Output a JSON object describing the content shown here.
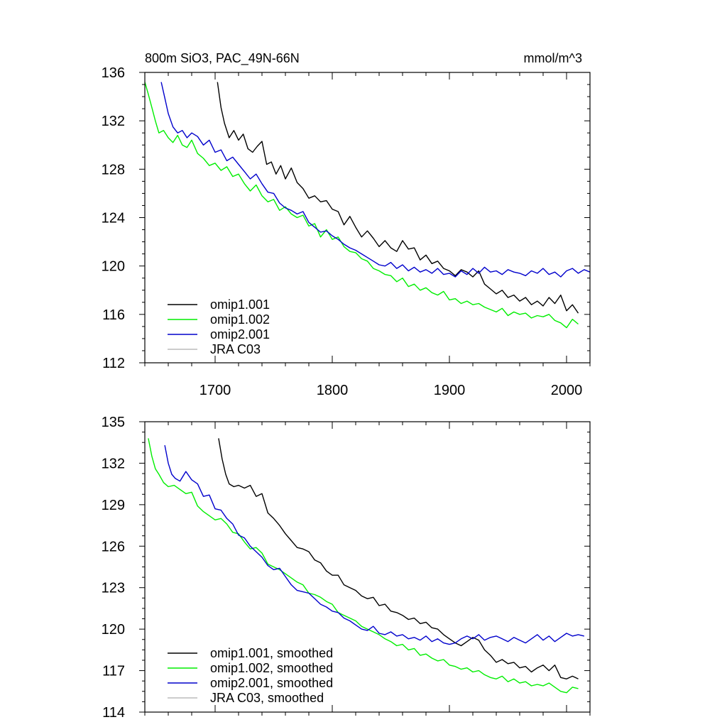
{
  "figure": {
    "background": "#ffffff"
  },
  "chart_data": [
    {
      "type": "line",
      "title": "800m SiO3, PAC_49N-66N",
      "units": "mmol/m^3",
      "xlim": [
        1640,
        2020
      ],
      "ylim": [
        112,
        136
      ],
      "xticks": [
        1700,
        1800,
        1900,
        2000
      ],
      "yticks": [
        112,
        116,
        120,
        124,
        128,
        132,
        136
      ],
      "show_x_tick_labels": true,
      "legend": {
        "placement": "bottom-left"
      },
      "series": [
        {
          "name": "omip1.001",
          "color": "#000000",
          "x": [
            1702,
            1705,
            1708,
            1712,
            1716,
            1720,
            1724,
            1728,
            1732,
            1736,
            1740,
            1744,
            1748,
            1752,
            1756,
            1760,
            1765,
            1770,
            1775,
            1780,
            1785,
            1790,
            1795,
            1800,
            1805,
            1810,
            1815,
            1820,
            1825,
            1830,
            1835,
            1840,
            1845,
            1850,
            1855,
            1860,
            1865,
            1870,
            1875,
            1880,
            1885,
            1890,
            1895,
            1900,
            1905,
            1910,
            1915,
            1920,
            1925,
            1930,
            1935,
            1940,
            1945,
            1950,
            1955,
            1960,
            1965,
            1970,
            1975,
            1980,
            1985,
            1990,
            1995,
            2000,
            2005,
            2010
          ],
          "values": [
            135.2,
            133.1,
            131.8,
            130.6,
            131.2,
            130.4,
            130.9,
            129.7,
            129.4,
            129.9,
            130.3,
            128.4,
            128.6,
            127.6,
            128.3,
            127.2,
            128.1,
            126.9,
            126.4,
            125.6,
            125.8,
            125.3,
            125.4,
            124.7,
            124.5,
            123.4,
            124.1,
            123.2,
            122.4,
            122.9,
            122.3,
            121.6,
            122.1,
            121.5,
            121.2,
            122.1,
            121.4,
            121.5,
            120.5,
            120.9,
            120.2,
            120.4,
            119.8,
            119.6,
            119.2,
            119.7,
            119.5,
            119.1,
            119.6,
            118.5,
            118.1,
            117.7,
            118.0,
            117.4,
            117.6,
            117.1,
            117.4,
            116.8,
            117.1,
            116.7,
            117.4,
            116.9,
            117.6,
            116.3,
            116.8,
            116.1
          ]
        },
        {
          "name": "omip1.002",
          "color": "#00ee00",
          "x": [
            1640,
            1643,
            1646,
            1649,
            1652,
            1656,
            1660,
            1664,
            1668,
            1672,
            1676,
            1680,
            1685,
            1690,
            1695,
            1700,
            1705,
            1710,
            1715,
            1720,
            1725,
            1730,
            1735,
            1740,
            1745,
            1750,
            1755,
            1760,
            1765,
            1770,
            1775,
            1780,
            1785,
            1790,
            1795,
            1800,
            1805,
            1810,
            1815,
            1820,
            1825,
            1830,
            1835,
            1840,
            1845,
            1850,
            1855,
            1860,
            1865,
            1870,
            1875,
            1880,
            1885,
            1890,
            1895,
            1900,
            1905,
            1910,
            1915,
            1920,
            1925,
            1930,
            1935,
            1940,
            1945,
            1950,
            1955,
            1960,
            1965,
            1970,
            1975,
            1980,
            1985,
            1990,
            1995,
            2000,
            2005,
            2010
          ],
          "values": [
            135.2,
            134.2,
            133.1,
            132.0,
            131.0,
            131.2,
            130.6,
            130.2,
            130.8,
            130.0,
            129.8,
            130.4,
            129.3,
            128.9,
            128.3,
            128.5,
            127.9,
            128.2,
            127.4,
            127.6,
            126.8,
            126.2,
            126.7,
            125.8,
            125.3,
            125.5,
            124.6,
            124.9,
            124.3,
            124.0,
            124.2,
            123.3,
            123.5,
            122.4,
            123.0,
            122.2,
            122.4,
            121.6,
            121.2,
            121.1,
            120.6,
            120.4,
            119.8,
            119.6,
            119.3,
            119.2,
            118.7,
            119.0,
            118.3,
            118.5,
            118.0,
            118.2,
            117.8,
            117.6,
            117.9,
            117.2,
            117.3,
            116.9,
            117.1,
            116.8,
            116.9,
            116.6,
            116.4,
            116.2,
            116.5,
            115.9,
            116.2,
            116.0,
            116.1,
            115.7,
            115.9,
            115.8,
            116.0,
            115.5,
            115.3,
            114.9,
            115.6,
            115.2
          ]
        },
        {
          "name": "omip2.001",
          "color": "#0000cc",
          "x": [
            1654,
            1657,
            1660,
            1664,
            1668,
            1672,
            1676,
            1680,
            1685,
            1690,
            1695,
            1700,
            1705,
            1710,
            1715,
            1720,
            1725,
            1730,
            1735,
            1740,
            1745,
            1750,
            1755,
            1760,
            1765,
            1770,
            1775,
            1780,
            1785,
            1790,
            1795,
            1800,
            1805,
            1810,
            1815,
            1820,
            1825,
            1830,
            1835,
            1840,
            1845,
            1850,
            1855,
            1860,
            1865,
            1870,
            1875,
            1880,
            1885,
            1890,
            1895,
            1900,
            1905,
            1910,
            1915,
            1920,
            1925,
            1930,
            1935,
            1940,
            1945,
            1950,
            1955,
            1960,
            1965,
            1970,
            1975,
            1980,
            1985,
            1990,
            1995,
            2000,
            2005,
            2010,
            2015,
            2020
          ],
          "values": [
            135.2,
            133.9,
            132.6,
            131.5,
            131.0,
            131.2,
            130.6,
            131.0,
            130.7,
            130.0,
            130.4,
            129.4,
            129.6,
            128.7,
            129.0,
            128.4,
            127.8,
            127.2,
            127.6,
            126.8,
            126.1,
            126.0,
            125.2,
            124.8,
            124.6,
            124.3,
            124.5,
            123.6,
            123.2,
            122.8,
            122.9,
            122.5,
            122.2,
            121.8,
            121.5,
            121.3,
            121.0,
            120.7,
            120.4,
            120.1,
            120.0,
            120.3,
            119.8,
            120.1,
            119.6,
            119.9,
            119.5,
            119.7,
            119.4,
            119.8,
            119.3,
            119.4,
            119.1,
            119.6,
            119.3,
            119.8,
            119.4,
            119.9,
            119.5,
            119.6,
            119.3,
            119.7,
            119.5,
            119.4,
            119.2,
            119.6,
            119.4,
            119.8,
            119.3,
            119.5,
            119.1,
            119.6,
            119.8,
            119.4,
            119.7,
            119.5
          ]
        },
        {
          "name": "JRA C03",
          "color": "#bbbbbb",
          "x": [],
          "values": []
        }
      ]
    },
    {
      "type": "line",
      "title": "",
      "units": "",
      "xlim": [
        1640,
        2020
      ],
      "ylim": [
        114,
        135
      ],
      "xticks": [
        1700,
        1800,
        1900,
        2000
      ],
      "yticks": [
        114,
        117,
        120,
        123,
        126,
        129,
        132,
        135
      ],
      "show_x_tick_labels": false,
      "legend": {
        "placement": "bottom-left"
      },
      "series": [
        {
          "name": "omip1.001, smoothed",
          "color": "#000000",
          "x": [
            1703,
            1706,
            1709,
            1712,
            1716,
            1720,
            1725,
            1730,
            1735,
            1740,
            1745,
            1750,
            1755,
            1760,
            1765,
            1770,
            1775,
            1780,
            1785,
            1790,
            1795,
            1800,
            1805,
            1810,
            1815,
            1820,
            1825,
            1830,
            1835,
            1840,
            1845,
            1850,
            1855,
            1860,
            1865,
            1870,
            1875,
            1880,
            1885,
            1890,
            1895,
            1900,
            1905,
            1910,
            1915,
            1920,
            1925,
            1930,
            1935,
            1940,
            1945,
            1950,
            1955,
            1960,
            1965,
            1970,
            1975,
            1980,
            1985,
            1990,
            1995,
            2000,
            2005,
            2010
          ],
          "values": [
            133.8,
            132.3,
            131.2,
            130.5,
            130.3,
            130.4,
            130.2,
            130.4,
            129.6,
            129.8,
            128.4,
            128.0,
            127.5,
            126.9,
            126.4,
            125.9,
            125.8,
            125.6,
            125.0,
            124.8,
            124.2,
            123.9,
            123.9,
            123.2,
            123.0,
            122.8,
            122.4,
            122.2,
            122.3,
            121.7,
            121.8,
            121.3,
            121.2,
            121.0,
            120.7,
            120.8,
            120.4,
            120.5,
            120.1,
            120.0,
            119.6,
            119.3,
            119.0,
            118.8,
            119.1,
            119.4,
            119.2,
            118.5,
            118.1,
            117.6,
            117.8,
            117.5,
            117.6,
            117.2,
            117.3,
            116.9,
            117.2,
            117.4,
            117.0,
            117.4,
            116.5,
            116.4,
            116.6,
            116.4
          ]
        },
        {
          "name": "omip1.002, smoothed",
          "color": "#00ee00",
          "x": [
            1643,
            1646,
            1649,
            1652,
            1656,
            1660,
            1665,
            1670,
            1675,
            1680,
            1685,
            1690,
            1695,
            1700,
            1705,
            1710,
            1715,
            1720,
            1725,
            1730,
            1735,
            1740,
            1745,
            1750,
            1755,
            1760,
            1765,
            1770,
            1775,
            1780,
            1785,
            1790,
            1795,
            1800,
            1805,
            1810,
            1815,
            1820,
            1825,
            1830,
            1835,
            1840,
            1845,
            1850,
            1855,
            1860,
            1865,
            1870,
            1875,
            1880,
            1885,
            1890,
            1895,
            1900,
            1905,
            1910,
            1915,
            1920,
            1925,
            1930,
            1935,
            1940,
            1945,
            1950,
            1955,
            1960,
            1965,
            1970,
            1975,
            1980,
            1985,
            1990,
            1995,
            2000,
            2005,
            2010
          ],
          "values": [
            133.8,
            132.5,
            131.6,
            131.2,
            130.6,
            130.3,
            130.4,
            130.1,
            129.8,
            129.9,
            128.9,
            128.5,
            128.2,
            127.9,
            128.0,
            127.6,
            127.0,
            126.9,
            126.3,
            125.8,
            125.9,
            125.5,
            124.7,
            124.5,
            124.3,
            124.0,
            123.7,
            123.4,
            123.2,
            122.6,
            122.5,
            122.3,
            122.0,
            121.8,
            121.2,
            121.0,
            120.8,
            120.6,
            120.2,
            120.0,
            119.8,
            119.6,
            119.3,
            119.1,
            118.8,
            118.9,
            118.5,
            118.6,
            118.1,
            118.2,
            117.9,
            117.7,
            117.8,
            117.4,
            117.3,
            117.1,
            117.2,
            116.9,
            117.0,
            116.7,
            116.5,
            116.4,
            116.6,
            116.2,
            116.4,
            116.1,
            116.2,
            115.9,
            116.0,
            115.9,
            116.1,
            115.8,
            115.5,
            115.4,
            115.8,
            115.7
          ]
        },
        {
          "name": "omip2.001, smoothed",
          "color": "#0000cc",
          "x": [
            1657,
            1660,
            1663,
            1666,
            1670,
            1675,
            1680,
            1685,
            1690,
            1695,
            1700,
            1705,
            1710,
            1715,
            1720,
            1725,
            1730,
            1735,
            1740,
            1745,
            1750,
            1755,
            1760,
            1765,
            1770,
            1775,
            1780,
            1785,
            1790,
            1795,
            1800,
            1805,
            1810,
            1815,
            1820,
            1825,
            1830,
            1835,
            1840,
            1845,
            1850,
            1855,
            1860,
            1865,
            1870,
            1875,
            1880,
            1885,
            1890,
            1895,
            1900,
            1905,
            1910,
            1915,
            1920,
            1925,
            1930,
            1935,
            1940,
            1945,
            1950,
            1955,
            1960,
            1965,
            1970,
            1975,
            1980,
            1985,
            1990,
            1995,
            2000,
            2005,
            2010,
            2015
          ],
          "values": [
            133.3,
            132.0,
            131.2,
            130.9,
            130.7,
            131.4,
            130.8,
            130.5,
            129.6,
            129.7,
            128.7,
            128.6,
            128.0,
            127.6,
            126.8,
            126.6,
            126.0,
            125.6,
            125.2,
            124.6,
            124.3,
            124.4,
            123.8,
            123.2,
            122.8,
            122.7,
            122.6,
            122.2,
            121.8,
            121.6,
            121.3,
            121.2,
            120.8,
            120.6,
            120.3,
            120.0,
            119.9,
            120.2,
            119.7,
            119.6,
            119.8,
            119.5,
            119.6,
            119.3,
            119.4,
            119.2,
            119.5,
            119.1,
            119.3,
            119.0,
            118.9,
            119.0,
            119.3,
            119.5,
            119.3,
            119.6,
            119.2,
            119.4,
            119.5,
            119.3,
            119.1,
            119.4,
            119.2,
            119.0,
            119.3,
            119.6,
            119.2,
            119.5,
            119.1,
            119.4,
            119.7,
            119.5,
            119.6,
            119.5
          ]
        },
        {
          "name": "JRA C03, smoothed",
          "color": "#bbbbbb",
          "x": [],
          "values": []
        }
      ]
    }
  ]
}
